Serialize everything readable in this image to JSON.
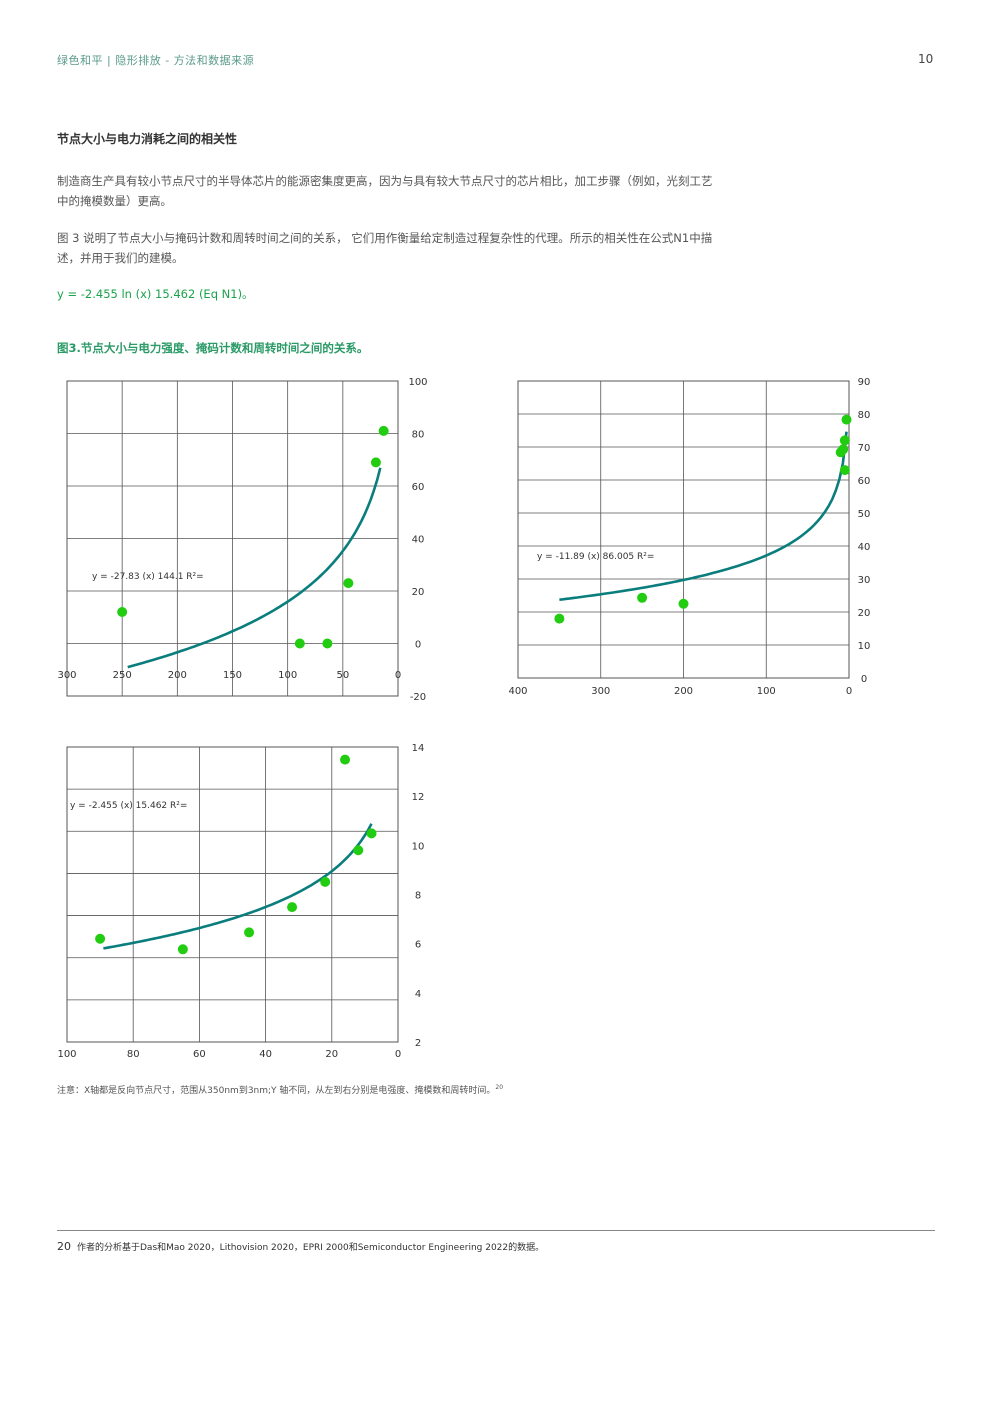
{
  "header": {
    "title": "绿色和平 | 隐形排放 - 方法和数据来源",
    "page": "10"
  },
  "section_heading": "节点大小与电力消耗之间的相关性",
  "para1": "制造商生产具有较小节点尺寸的半导体芯片的能源密集度更高，因为与具有较大节点尺寸的芯片相比，加工步骤（例如，光刻工艺中的掩模数量）更高。",
  "para2": "图 3 说明了节点大小与掩码计数和周转时间之间的关系， 它们用作衡量给定制造过程复杂性的代理。所示的相关性在公式N1中描述，并用于我们的建模。",
  "equation": "y = -2.455 ln (x) 15.462 (Eq N1)。",
  "figure_title": "图3.节点大小与电力强度、掩码计数和周转时间之间的关系。",
  "note": "注意：X轴都是反向节点尺寸，范围从350nm到3nm;Y 轴不同，从左到右分别是电强度、掩模数和周转时间。",
  "note_ref": "20",
  "footnote_num": "20",
  "footnote": "作者的分析基于Das和Mao 2020，Lithovision 2020，EPRI 2000和Semiconductor Engineering 2022的数据。",
  "colors": {
    "points": "#22cc11",
    "curve": "#0a7d7d",
    "accent": "#2a9a66"
  },
  "chart_data": [
    {
      "type": "scatter",
      "x_reversed": true,
      "xlim": [
        300,
        0
      ],
      "ylim": [
        -20,
        100
      ],
      "xticks": [
        "300",
        "250",
        "200",
        "150",
        "100",
        "50",
        "0"
      ],
      "yticks": [
        "100",
        "80",
        "60",
        "40",
        "20",
        "0",
        "-20"
      ],
      "equation_label": "y = -27.83  (x)  144.1 R²=",
      "points": [
        [
          250,
          12
        ],
        [
          89,
          0
        ],
        [
          64,
          0
        ],
        [
          45,
          23
        ],
        [
          20,
          69
        ],
        [
          13,
          81
        ]
      ],
      "fit": {
        "a": -27.83,
        "b": 144.1,
        "x_range": [
          245,
          16
        ]
      }
    },
    {
      "type": "scatter",
      "x_reversed": true,
      "xlim": [
        400,
        0
      ],
      "ylim": [
        -10,
        90
      ],
      "xticks": [
        "400",
        "300",
        "200",
        "100",
        "0"
      ],
      "yticks": [
        "90",
        "80",
        "70",
        "60",
        "50",
        "40",
        "30",
        "20",
        "10",
        "0"
      ],
      "equation_label": "y = -11.89  (x)  86.005 R²=",
      "points": [
        [
          350,
          10
        ],
        [
          250,
          17
        ],
        [
          200,
          15
        ],
        [
          10,
          66
        ],
        [
          7,
          67
        ],
        [
          5,
          70
        ],
        [
          5,
          60
        ],
        [
          3,
          77
        ]
      ],
      "fit": {
        "a": -11.89,
        "b": 86.005,
        "x_range": [
          350,
          3
        ]
      }
    },
    {
      "type": "scatter",
      "x_reversed": true,
      "xlim": [
        100,
        0
      ],
      "ylim": [
        0,
        14
      ],
      "xticks": [
        "100",
        "80",
        "60",
        "40",
        "20",
        "0"
      ],
      "yticks": [
        "14",
        "12",
        "10",
        "8",
        "6",
        "4",
        "2"
      ],
      "equation_label": "y = -2.455  (x)  15.462  R²=",
      "points": [
        [
          90,
          4.9
        ],
        [
          65,
          4.4
        ],
        [
          45,
          5.2
        ],
        [
          32,
          6.4
        ],
        [
          22,
          7.6
        ],
        [
          16,
          13.4
        ],
        [
          12,
          9.1
        ],
        [
          8,
          9.9
        ]
      ],
      "fit": {
        "a": -2.455,
        "b": 15.462,
        "x_range": [
          89,
          8
        ]
      }
    }
  ]
}
